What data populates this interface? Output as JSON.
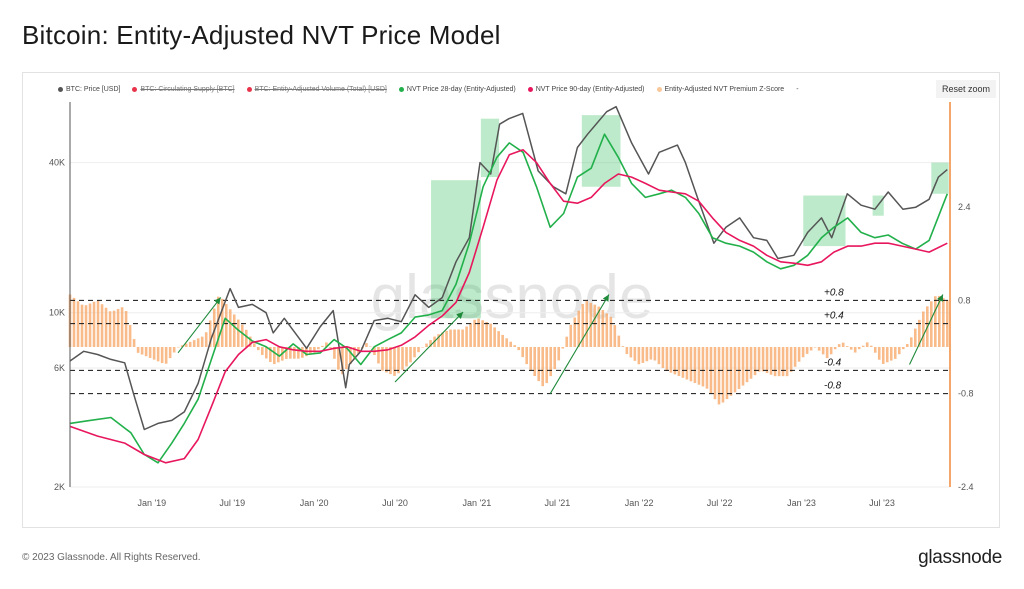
{
  "page": {
    "title": "Bitcoin: Entity-Adjusted NVT Price Model",
    "footer": "© 2023 Glassnode. All Rights Reserved.",
    "brand": "glassnode",
    "watermark": "glassnode",
    "reset_zoom_label": "Reset zoom"
  },
  "legend": [
    {
      "label": "BTC: Price [USD]",
      "color": "#555555",
      "enabled": true
    },
    {
      "label": "BTC: Circulating Supply [BTC]",
      "color": "#e8334a",
      "enabled": false
    },
    {
      "label": "BTC: Entity-Adjusted Volume (Total) [USD]",
      "color": "#e8334a",
      "enabled": false
    },
    {
      "label": "NVT Price 28-day (Entity-Adjusted)",
      "color": "#22b04b",
      "enabled": true
    },
    {
      "label": "NVT Price 90-day (Entity-Adjusted)",
      "color": "#e8175d",
      "enabled": true
    },
    {
      "label": "Entity-Adjusted NVT Premium Z-Score",
      "color": "#f8c79a",
      "enabled": true
    },
    {
      "label": "-",
      "color": "#ffffff",
      "enabled": true
    }
  ],
  "colors": {
    "price": "#555555",
    "nvt28": "#22b04b",
    "nvt90": "#e8175d",
    "zscore": "#f5a462",
    "highlight": "#2ebd59",
    "arrow": "#1e8a3a",
    "right_axis_line": "#f28a3a"
  },
  "chart_data": {
    "type": "line",
    "title": "Bitcoin: Entity-Adjusted NVT Price Model",
    "x_ticks": [
      "Jan '19",
      "Jul '19",
      "Jan '20",
      "Jul '20",
      "Jan '21",
      "Jul '21",
      "Jan '22",
      "Jul '22",
      "Jan '23",
      "Jul '23"
    ],
    "y_left": {
      "scale": "log",
      "range": [
        2000,
        70000
      ],
      "ticks": [
        "2K",
        "6K",
        "10K",
        "40K"
      ],
      "tick_values": [
        2000,
        6000,
        10000,
        40000
      ]
    },
    "y_right": {
      "scale": "linear",
      "range": [
        -2.4,
        4.2
      ],
      "ticks": [
        "-2.4",
        "-0.8",
        "0.8",
        "2.4"
      ],
      "tick_values": [
        -2.4,
        -0.8,
        0.8,
        2.4
      ]
    },
    "threshold_lines": [
      {
        "value": 0.8,
        "label": "+0.8"
      },
      {
        "value": 0.4,
        "label": "+0.4"
      },
      {
        "value": -0.4,
        "label": "-0.4"
      },
      {
        "value": -0.8,
        "label": "-0.8"
      }
    ],
    "series": [
      {
        "name": "BTC: Price [USD]",
        "axis": "left",
        "x": [
          "2018-07-01",
          "2018-08-01",
          "2018-09-01",
          "2018-10-01",
          "2018-11-01",
          "2018-11-20",
          "2018-12-15",
          "2019-01-15",
          "2019-02-15",
          "2019-03-15",
          "2019-04-15",
          "2019-05-15",
          "2019-06-26",
          "2019-07-15",
          "2019-08-15",
          "2019-09-15",
          "2019-10-01",
          "2019-10-26",
          "2019-11-15",
          "2019-12-15",
          "2020-01-15",
          "2020-02-13",
          "2020-03-12",
          "2020-03-20",
          "2020-04-15",
          "2020-05-15",
          "2020-06-15",
          "2020-07-15",
          "2020-08-15",
          "2020-09-15",
          "2020-10-15",
          "2020-11-15",
          "2020-12-15",
          "2021-01-08",
          "2021-02-01",
          "2021-02-21",
          "2021-03-14",
          "2021-04-14",
          "2021-05-19",
          "2021-06-22",
          "2021-07-20",
          "2021-08-15",
          "2021-09-07",
          "2021-10-20",
          "2021-11-10",
          "2021-12-15",
          "2022-01-22",
          "2022-02-15",
          "2022-03-28",
          "2022-04-15",
          "2022-05-12",
          "2022-06-18",
          "2022-07-15",
          "2022-08-15",
          "2022-09-15",
          "2022-10-15",
          "2022-11-09",
          "2022-12-15",
          "2023-01-15",
          "2023-02-15",
          "2023-03-10",
          "2023-04-14",
          "2023-05-15",
          "2023-06-15",
          "2023-07-15",
          "2023-08-17",
          "2023-09-15",
          "2023-10-15",
          "2023-11-05",
          "2023-11-25"
        ],
        "y": [
          6400,
          7000,
          6800,
          6500,
          6300,
          4800,
          3400,
          3600,
          3700,
          4000,
          5200,
          7900,
          12500,
          10500,
          10800,
          10000,
          8300,
          9500,
          8500,
          7200,
          8800,
          10200,
          5000,
          6200,
          7000,
          9300,
          9500,
          9200,
          11800,
          10500,
          11500,
          16000,
          20000,
          40000,
          36000,
          57000,
          60000,
          63000,
          37000,
          32000,
          30000,
          46000,
          52000,
          64000,
          67000,
          48000,
          36000,
          44000,
          47000,
          40000,
          29000,
          19000,
          22000,
          24000,
          20000,
          19500,
          16500,
          17000,
          21000,
          24000,
          20000,
          30000,
          27000,
          26000,
          30500,
          26000,
          26500,
          28500,
          35000,
          37500
        ]
      },
      {
        "name": "NVT Price 28-day (Entity-Adjusted)",
        "axis": "left",
        "x": [
          "2018-07-01",
          "2018-08-15",
          "2018-10-01",
          "2018-11-15",
          "2018-12-15",
          "2019-01-15",
          "2019-02-15",
          "2019-03-15",
          "2019-04-15",
          "2019-05-15",
          "2019-06-15",
          "2019-07-15",
          "2019-08-15",
          "2019-09-15",
          "2019-10-15",
          "2019-11-15",
          "2019-12-15",
          "2020-01-15",
          "2020-02-15",
          "2020-03-15",
          "2020-04-15",
          "2020-05-15",
          "2020-06-15",
          "2020-07-15",
          "2020-08-15",
          "2020-09-15",
          "2020-10-15",
          "2020-11-15",
          "2020-12-15",
          "2021-01-15",
          "2021-02-15",
          "2021-03-15",
          "2021-04-15",
          "2021-05-15",
          "2021-06-15",
          "2021-07-15",
          "2021-08-15",
          "2021-09-15",
          "2021-10-15",
          "2021-11-15",
          "2021-12-15",
          "2022-01-15",
          "2022-02-15",
          "2022-03-15",
          "2022-04-15",
          "2022-05-15",
          "2022-06-15",
          "2022-07-15",
          "2022-08-15",
          "2022-09-15",
          "2022-10-15",
          "2022-11-15",
          "2022-12-15",
          "2023-01-15",
          "2023-02-15",
          "2023-03-15",
          "2023-04-15",
          "2023-05-15",
          "2023-06-15",
          "2023-07-15",
          "2023-08-15",
          "2023-09-15",
          "2023-10-15",
          "2023-11-25"
        ],
        "y": [
          3600,
          3700,
          3800,
          3300,
          2700,
          2500,
          3000,
          3600,
          4500,
          6500,
          9500,
          8500,
          7700,
          7300,
          6700,
          7500,
          6800,
          6900,
          7800,
          7200,
          6200,
          7300,
          7800,
          8300,
          9600,
          9800,
          10200,
          13000,
          19000,
          32000,
          42000,
          48000,
          44000,
          32000,
          22000,
          25000,
          35000,
          38000,
          52000,
          42000,
          33000,
          29000,
          30000,
          31000,
          29000,
          25000,
          20000,
          19000,
          18500,
          17500,
          16000,
          15000,
          15500,
          17000,
          20000,
          22000,
          24000,
          21000,
          20000,
          20500,
          19000,
          18000,
          19500,
          30000
        ]
      },
      {
        "name": "NVT Price 90-day (Entity-Adjusted)",
        "axis": "left",
        "x": [
          "2018-07-01",
          "2018-09-01",
          "2018-11-01",
          "2018-12-15",
          "2019-02-01",
          "2019-03-15",
          "2019-04-15",
          "2019-05-15",
          "2019-06-15",
          "2019-07-15",
          "2019-08-15",
          "2019-09-15",
          "2019-10-15",
          "2019-11-15",
          "2019-12-15",
          "2020-01-15",
          "2020-02-15",
          "2020-03-15",
          "2020-04-15",
          "2020-05-15",
          "2020-06-15",
          "2020-07-15",
          "2020-08-15",
          "2020-09-15",
          "2020-10-15",
          "2020-11-15",
          "2020-12-15",
          "2021-01-15",
          "2021-02-15",
          "2021-03-15",
          "2021-04-15",
          "2021-05-15",
          "2021-06-15",
          "2021-07-15",
          "2021-08-15",
          "2021-09-15",
          "2021-10-15",
          "2021-11-15",
          "2021-12-15",
          "2022-01-15",
          "2022-02-15",
          "2022-03-15",
          "2022-04-15",
          "2022-05-15",
          "2022-06-15",
          "2022-07-15",
          "2022-08-15",
          "2022-09-15",
          "2022-10-15",
          "2022-11-15",
          "2022-12-15",
          "2023-01-15",
          "2023-02-15",
          "2023-03-15",
          "2023-04-15",
          "2023-05-15",
          "2023-06-15",
          "2023-07-15",
          "2023-08-15",
          "2023-09-15",
          "2023-10-15",
          "2023-11-25"
        ],
        "y": [
          3500,
          3200,
          3000,
          2700,
          2500,
          2600,
          3100,
          4200,
          5800,
          6800,
          7600,
          7800,
          7300,
          7100,
          7000,
          7000,
          7200,
          7300,
          7000,
          7000,
          7100,
          7400,
          8000,
          8900,
          9700,
          11000,
          14500,
          22000,
          34000,
          43000,
          45000,
          40000,
          33000,
          28000,
          27500,
          29000,
          33000,
          36000,
          35000,
          33000,
          31000,
          30500,
          30000,
          28000,
          24000,
          21000,
          19500,
          18500,
          17000,
          16000,
          15800,
          15500,
          16000,
          17500,
          18500,
          18500,
          19000,
          19000,
          18500,
          18000,
          17500,
          19000
        ]
      },
      {
        "name": "Entity-Adjusted NVT Premium Z-Score",
        "axis": "right",
        "type": "bar",
        "x": [
          "2018-07-01",
          "2018-08-01",
          "2018-09-01",
          "2018-10-01",
          "2018-11-01",
          "2018-12-01",
          "2019-01-01",
          "2019-02-01",
          "2019-03-01",
          "2019-04-01",
          "2019-05-01",
          "2019-06-01",
          "2019-07-01",
          "2019-08-01",
          "2019-09-01",
          "2019-10-01",
          "2019-11-01",
          "2019-12-01",
          "2020-01-01",
          "2020-02-01",
          "2020-03-01",
          "2020-04-01",
          "2020-05-01",
          "2020-06-01",
          "2020-07-01",
          "2020-08-01",
          "2020-09-01",
          "2020-10-01",
          "2020-11-01",
          "2020-12-01",
          "2021-01-01",
          "2021-02-01",
          "2021-03-01",
          "2021-04-01",
          "2021-05-01",
          "2021-06-01",
          "2021-07-01",
          "2021-08-01",
          "2021-09-01",
          "2021-10-01",
          "2021-11-01",
          "2021-12-01",
          "2022-01-01",
          "2022-02-01",
          "2022-03-01",
          "2022-04-01",
          "2022-05-01",
          "2022-06-01",
          "2022-07-01",
          "2022-08-01",
          "2022-09-01",
          "2022-10-01",
          "2022-11-01",
          "2022-12-01",
          "2023-01-01",
          "2023-02-01",
          "2023-03-01",
          "2023-04-01",
          "2023-05-01",
          "2023-06-01",
          "2023-07-01",
          "2023-08-01",
          "2023-09-01",
          "2023-10-01",
          "2023-11-01",
          "2023-11-25"
        ],
        "y": [
          0.9,
          0.7,
          0.8,
          0.6,
          0.7,
          -0.1,
          -0.2,
          -0.3,
          0.0,
          0.1,
          0.2,
          0.9,
          0.6,
          0.3,
          -0.1,
          -0.3,
          -0.2,
          -0.2,
          -0.1,
          0.1,
          -0.5,
          -0.2,
          0.1,
          -0.4,
          -0.5,
          -0.3,
          0.0,
          0.2,
          0.3,
          0.3,
          0.5,
          0.4,
          0.2,
          0.0,
          -0.4,
          -0.7,
          -0.3,
          0.4,
          0.8,
          0.7,
          0.5,
          -0.1,
          -0.3,
          -0.2,
          -0.4,
          -0.5,
          -0.6,
          -0.7,
          -1.0,
          -0.8,
          -0.6,
          -0.4,
          -0.5,
          -0.5,
          -0.2,
          0.0,
          -0.2,
          0.1,
          -0.1,
          0.1,
          -0.3,
          -0.2,
          0.1,
          0.6,
          0.9,
          0.8
        ]
      }
    ],
    "highlight_zones": [
      {
        "x_start": "2020-09-20",
        "x_end": "2021-01-10",
        "y_low": 9500,
        "y_high": 34000
      },
      {
        "x_start": "2021-01-10",
        "x_end": "2021-02-20",
        "y_low": 35000,
        "y_high": 60000
      },
      {
        "x_start": "2021-08-25",
        "x_end": "2021-11-20",
        "y_low": 32000,
        "y_high": 62000
      },
      {
        "x_start": "2023-01-05",
        "x_end": "2023-04-10",
        "y_low": 18500,
        "y_high": 29500
      },
      {
        "x_start": "2023-06-10",
        "x_end": "2023-07-05",
        "y_low": 24500,
        "y_high": 29500
      },
      {
        "x_start": "2023-10-20",
        "x_end": "2023-11-28",
        "y_low": 30000,
        "y_high": 40000
      }
    ],
    "trend_arrows": [
      {
        "x_start": "2019-03-01",
        "z_start": -0.1,
        "x_end": "2019-06-05",
        "z_end": 0.85
      },
      {
        "x_start": "2020-07-01",
        "z_start": -0.6,
        "x_end": "2020-12-01",
        "z_end": 0.6
      },
      {
        "x_start": "2021-06-15",
        "z_start": -0.8,
        "x_end": "2021-10-25",
        "z_end": 0.9
      },
      {
        "x_start": "2023-09-01",
        "z_start": -0.3,
        "x_end": "2023-11-15",
        "z_end": 0.9
      }
    ]
  }
}
